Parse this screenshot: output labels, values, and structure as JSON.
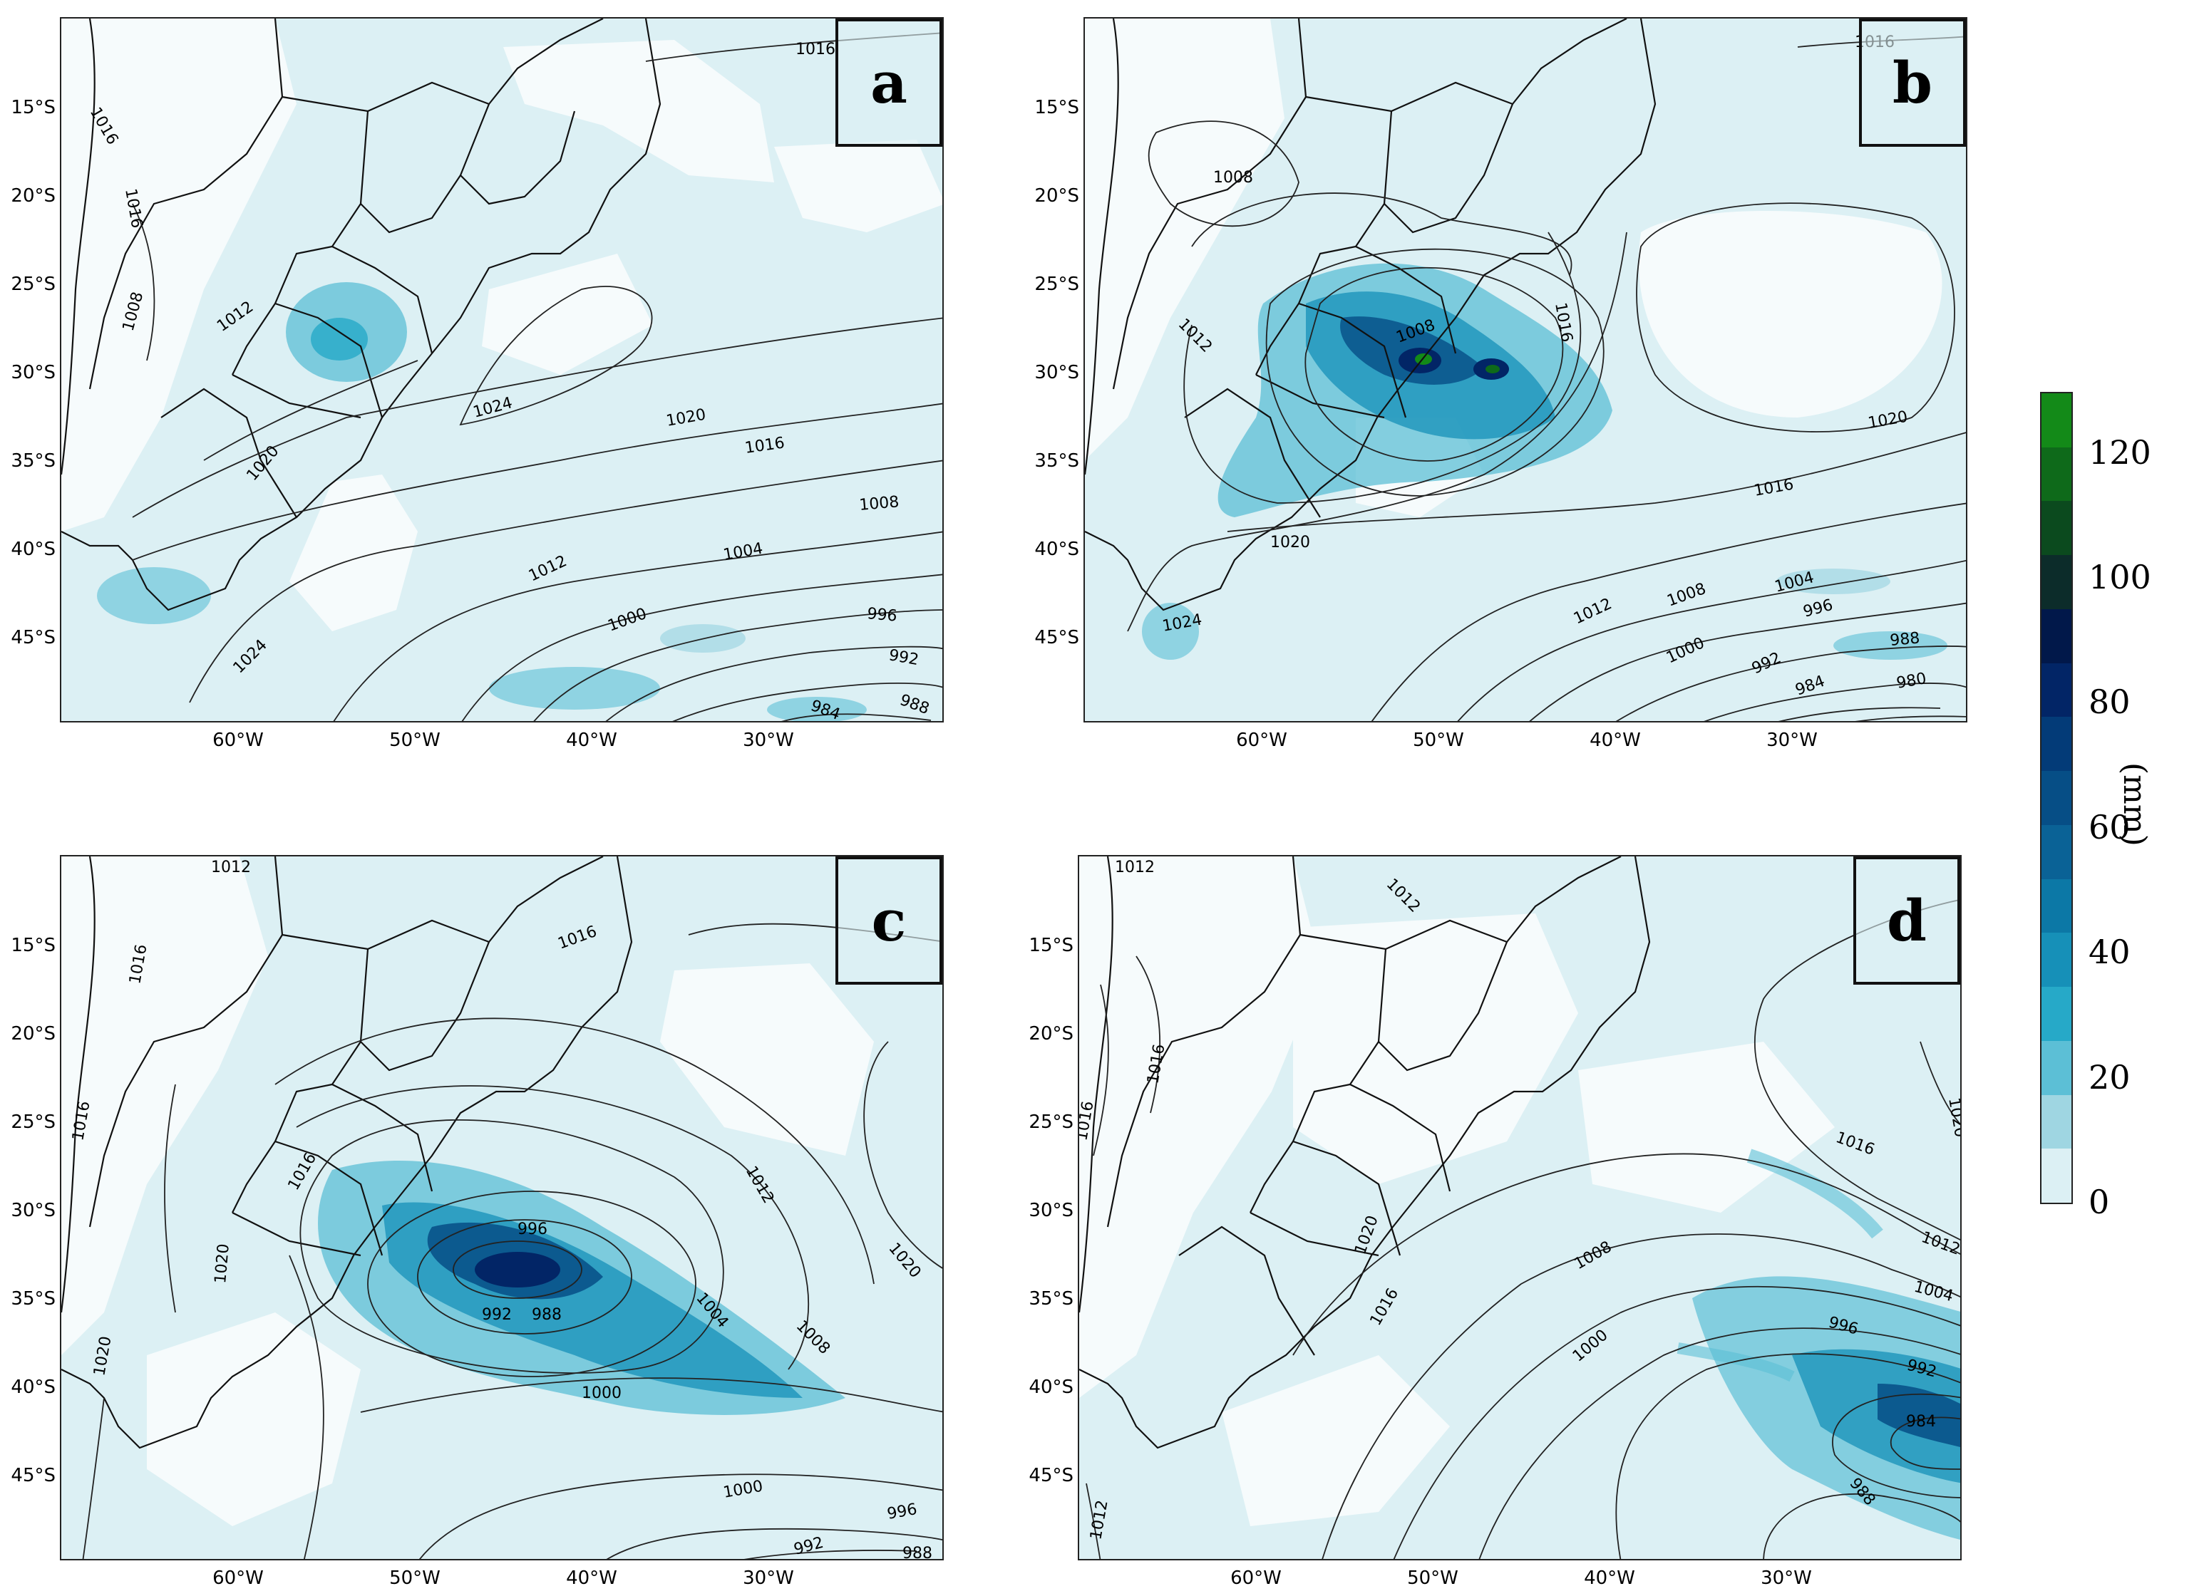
{
  "panels": [
    {
      "letter": "a",
      "isobar_labels": [
        "1016",
        "1016",
        "1016",
        "1012",
        "1008",
        "1024",
        "1020",
        "1016",
        "1008",
        "1012",
        "1004",
        "1000",
        "996",
        "992",
        "988",
        "984",
        "1024",
        "1020"
      ]
    },
    {
      "letter": "b",
      "isobar_labels": [
        "1016",
        "1008",
        "1008",
        "1012",
        "1016",
        "1020",
        "1020",
        "1016",
        "1012",
        "1008",
        "1004",
        "1000",
        "996",
        "992",
        "988",
        "984",
        "980",
        "1024"
      ]
    },
    {
      "letter": "c",
      "isobar_labels": [
        "1012",
        "1016",
        "1016",
        "1016",
        "1016",
        "1012",
        "1020",
        "996",
        "992",
        "988",
        "1004",
        "1008",
        "1000",
        "1020",
        "1020",
        "1000",
        "996",
        "992",
        "988"
      ]
    },
    {
      "letter": "d",
      "isobar_labels": [
        "1012",
        "1012",
        "1016",
        "1016",
        "1016",
        "1020",
        "1020",
        "1016",
        "1012",
        "1008",
        "1004",
        "996",
        "1000",
        "992",
        "984",
        "988",
        "1012"
      ]
    }
  ],
  "lat_labels": [
    "15°S",
    "20°S",
    "25°S",
    "30°S",
    "35°S",
    "40°S",
    "45°S"
  ],
  "lon_labels": [
    "60°W",
    "50°W",
    "40°W",
    "30°W"
  ],
  "colorbar": {
    "ticks": [
      "0",
      "20",
      "40",
      "60",
      "80",
      "100",
      "120"
    ],
    "unit": "(mm)",
    "colors": [
      "#dcf0f4",
      "#9fd6e2",
      "#5cbfd6",
      "#26a9c8",
      "#1690b8",
      "#0c78a6",
      "#0a6296",
      "#064e86",
      "#033b78",
      "#022566",
      "#01184a",
      "#0c2c2a",
      "#0b4a1e",
      "#0e6a1a",
      "#138a18"
    ]
  }
}
